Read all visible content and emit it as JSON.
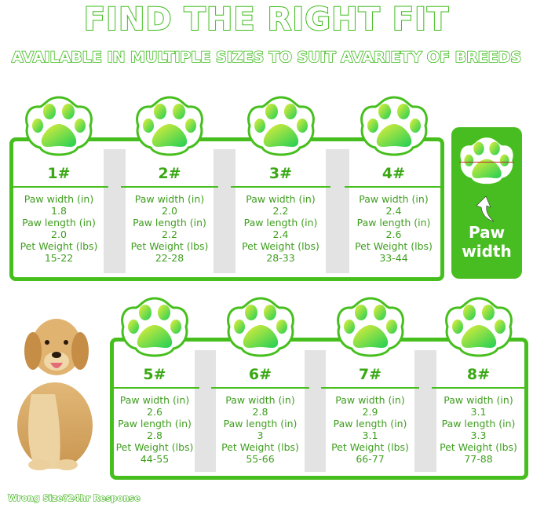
{
  "header": {
    "title": "FIND THE RIGHT FIT",
    "subtitle": "AVAILABLE IN MULTIPLE SIZES TO SUIT AVARIETY OF BREEDS"
  },
  "labels": {
    "paw_width": "Paw width (in)",
    "paw_length": "Paw length (in)",
    "pet_weight": "Pet Weight (lbs)"
  },
  "sizes": [
    {
      "size": "1#",
      "paw_width": "1.8",
      "paw_length": "2.0",
      "pet_weight": "15-22"
    },
    {
      "size": "2#",
      "paw_width": "2.0",
      "paw_length": "2.2",
      "pet_weight": "22-28"
    },
    {
      "size": "3#",
      "paw_width": "2.2",
      "paw_length": "2.4",
      "pet_weight": "28-33"
    },
    {
      "size": "4#",
      "paw_width": "2.4",
      "paw_length": "2.6",
      "pet_weight": "33-44"
    },
    {
      "size": "5#",
      "paw_width": "2.6",
      "paw_length": "2.8",
      "pet_weight": "44-55"
    },
    {
      "size": "6#",
      "paw_width": "2.8",
      "paw_length": "3",
      "pet_weight": "55-66"
    },
    {
      "size": "7#",
      "paw_width": "2.9",
      "paw_length": "3.1",
      "pet_weight": "66-77"
    },
    {
      "size": "8#",
      "paw_width": "3.1",
      "paw_length": "3.3",
      "pet_weight": "77-88"
    }
  ],
  "side_box": {
    "line1": "Paw",
    "line2": "width"
  },
  "footer": "Wrong Size?24hr Response",
  "colors": {
    "accent": "#46bf1e",
    "text": "#3f9e1f",
    "gap": "#e3e3e3",
    "measure_line": "#c0262b"
  }
}
